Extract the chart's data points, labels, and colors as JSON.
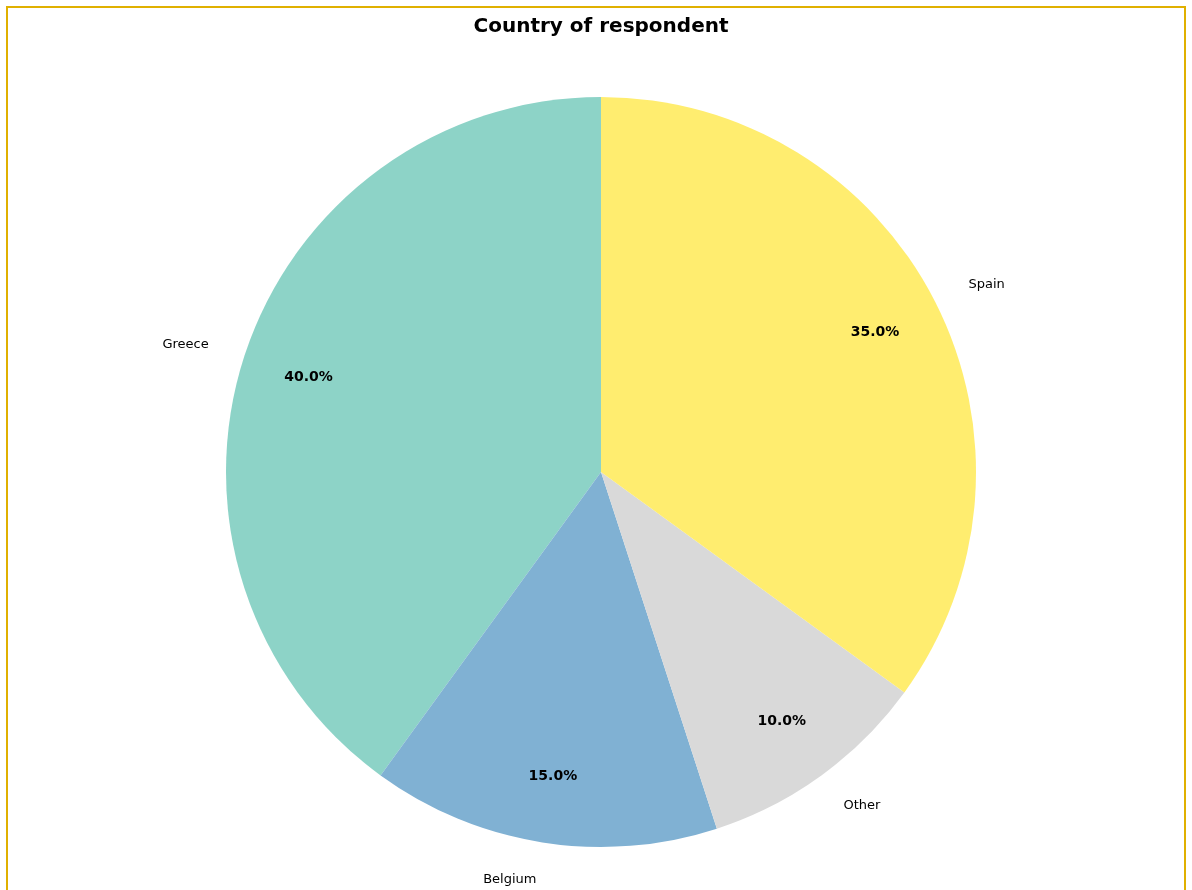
{
  "chart_data": {
    "type": "pie",
    "title": "Country of respondent",
    "categories": [
      "Greece",
      "Belgium",
      "Other",
      "Spain"
    ],
    "values": [
      40,
      15,
      10,
      35
    ],
    "value_labels": [
      "40.0%",
      "15.0%",
      "10.0%",
      "35.0%"
    ],
    "colors": [
      "#8dd3c7",
      "#80b1d3",
      "#d9d9d9",
      "#ffed6f"
    ]
  }
}
